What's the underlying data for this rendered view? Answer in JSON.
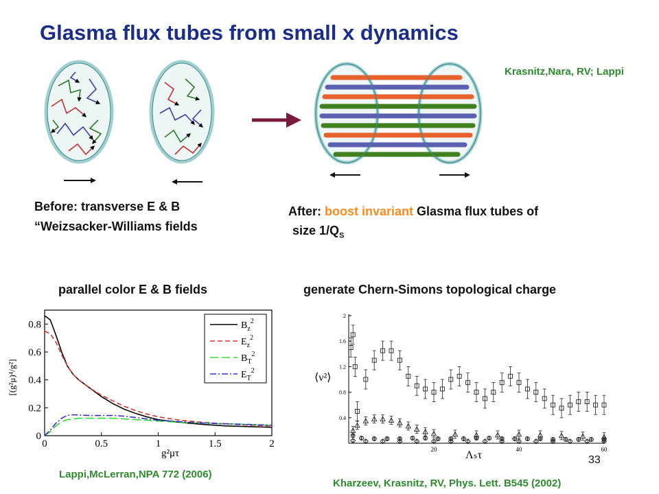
{
  "title": "Glasma flux tubes from small x dynamics",
  "credit_top": "Krasnitz,Nara, RV; Lappi",
  "before": {
    "line1": "Before: transverse E & B",
    "line2": "“Weizsacker-Williams fields"
  },
  "after": {
    "prefix": "After:",
    "highlight": "boost invariant",
    "suffix": "Glasma flux tubes of",
    "line2": "size 1/Q",
    "line2_sub": "S"
  },
  "heading_left": "parallel color E & B fields",
  "heading_right": "generate Chern-Simons topological charge",
  "credit_left": "Lappi,McLerran,NPA 772 (2006)",
  "credit_right": "Kharzeev, Krasnitz, RV, Phys. Lett. B545 (2002)",
  "page_number": "33",
  "colors": {
    "title": "#1b2d8a",
    "credit": "#2e8b2e",
    "highlight": "#ff8a1e",
    "arrow": "#7a1a3c",
    "tube_red": "#e8612c",
    "tube_blue": "#5a5fb0",
    "tube_green": "#3f7f1e"
  },
  "chart_data": [
    {
      "type": "line",
      "title": "",
      "xlabel": "g²μτ",
      "ylabel": "[(g²μ)⁴/g²]",
      "xlim": [
        0,
        2
      ],
      "ylim": [
        0,
        0.9
      ],
      "x_ticks": [
        "0",
        "0.5",
        "1",
        "1.5",
        "2"
      ],
      "y_ticks": [
        "0",
        "0.2",
        "0.4",
        "0.6",
        "0.8"
      ],
      "legend_position": "top-right",
      "x": [
        0,
        0.05,
        0.1,
        0.15,
        0.2,
        0.25,
        0.3,
        0.4,
        0.5,
        0.6,
        0.7,
        0.8,
        0.9,
        1.0,
        1.2,
        1.4,
        1.6,
        1.8,
        2.0
      ],
      "series": [
        {
          "name": "Bz²",
          "legend": {
            "base": "B",
            "sub": "z",
            "sup": "2"
          },
          "color": "#000000",
          "dash": "solid",
          "values": [
            0.86,
            0.83,
            0.72,
            0.6,
            0.5,
            0.44,
            0.4,
            0.34,
            0.28,
            0.23,
            0.19,
            0.16,
            0.135,
            0.115,
            0.095,
            0.08,
            0.07,
            0.065,
            0.06
          ]
        },
        {
          "name": "Ez²",
          "legend": {
            "base": "E",
            "sub": "z",
            "sup": "2"
          },
          "color": "#e03030",
          "dash": "dashed",
          "values": [
            0.75,
            0.73,
            0.67,
            0.58,
            0.5,
            0.44,
            0.4,
            0.34,
            0.29,
            0.25,
            0.21,
            0.18,
            0.155,
            0.135,
            0.11,
            0.095,
            0.085,
            0.075,
            0.07
          ]
        },
        {
          "name": "BT²",
          "legend": {
            "base": "B",
            "sub": "T",
            "sup": "2"
          },
          "color": "#30dd30",
          "dash": "longdash",
          "values": [
            0,
            0.03,
            0.07,
            0.1,
            0.115,
            0.12,
            0.125,
            0.125,
            0.125,
            0.125,
            0.12,
            0.115,
            0.11,
            0.105,
            0.095,
            0.09,
            0.085,
            0.08,
            0.075
          ]
        },
        {
          "name": "ET²",
          "legend": {
            "base": "E",
            "sub": "T",
            "sup": "2"
          },
          "color": "#3030cc",
          "dash": "dashdot",
          "values": [
            0,
            0.04,
            0.09,
            0.125,
            0.145,
            0.15,
            0.148,
            0.145,
            0.145,
            0.145,
            0.14,
            0.13,
            0.12,
            0.11,
            0.1,
            0.09,
            0.085,
            0.08,
            0.075
          ]
        }
      ]
    },
    {
      "type": "scatter",
      "title": "",
      "xlabel": "Λₛτ",
      "ylabel": "⟨ν²⟩",
      "xlim": [
        0,
        60
      ],
      "ylim": [
        0,
        2
      ],
      "x_ticks": [
        "20",
        "40",
        "60"
      ],
      "y_ticks": [
        "0.4",
        "0.8",
        "1.2",
        "1.6",
        "2"
      ],
      "series": [
        {
          "name": "",
          "marker": "square",
          "x": [
            0.5,
            1,
            1.5,
            2,
            4,
            6,
            8,
            10,
            12,
            14,
            16,
            18,
            20,
            22,
            24,
            26,
            28,
            30,
            32,
            34,
            36,
            38,
            40,
            42,
            44,
            46,
            48,
            50,
            52,
            54,
            56,
            58,
            60
          ],
          "values": [
            1.5,
            1.7,
            1.2,
            0.5,
            1.0,
            1.3,
            1.45,
            1.45,
            1.3,
            1.05,
            0.9,
            0.85,
            0.8,
            0.85,
            1.0,
            1.05,
            0.95,
            0.8,
            0.7,
            0.8,
            0.95,
            1.05,
            0.95,
            0.85,
            0.8,
            0.7,
            0.6,
            0.55,
            0.6,
            0.65,
            0.65,
            0.6,
            0.6
          ]
        },
        {
          "name": "",
          "marker": "triangle",
          "x": [
            1,
            2,
            4,
            6,
            8,
            10,
            12,
            14,
            16,
            18,
            20,
            25,
            30,
            35,
            40,
            45,
            50,
            55,
            60
          ],
          "values": [
            0.2,
            0.28,
            0.35,
            0.38,
            0.38,
            0.36,
            0.32,
            0.27,
            0.22,
            0.18,
            0.15,
            0.14,
            0.13,
            0.13,
            0.14,
            0.13,
            0.12,
            0.11,
            0.1
          ]
        },
        {
          "name": "",
          "marker": "circle-plus",
          "x": [
            1,
            3,
            6,
            9,
            12,
            15,
            18,
            21,
            24,
            27,
            30,
            33,
            36,
            39,
            42,
            45,
            48,
            51,
            54,
            57,
            60
          ],
          "values": [
            0.12,
            0.08,
            0.07,
            0.07,
            0.07,
            0.08,
            0.08,
            0.07,
            0.07,
            0.07,
            0.08,
            0.08,
            0.07,
            0.07,
            0.07,
            0.07,
            0.06,
            0.06,
            0.06,
            0.06,
            0.06
          ]
        },
        {
          "name": "",
          "marker": "diamond",
          "x": [
            1,
            4,
            8,
            12,
            16,
            20,
            24,
            28,
            32,
            36,
            40,
            44,
            48,
            52,
            56,
            60
          ],
          "values": [
            0.04,
            0.03,
            0.03,
            0.03,
            0.03,
            0.03,
            0.03,
            0.03,
            0.03,
            0.03,
            0.03,
            0.03,
            0.03,
            0.03,
            0.03,
            0.03
          ]
        }
      ]
    }
  ]
}
